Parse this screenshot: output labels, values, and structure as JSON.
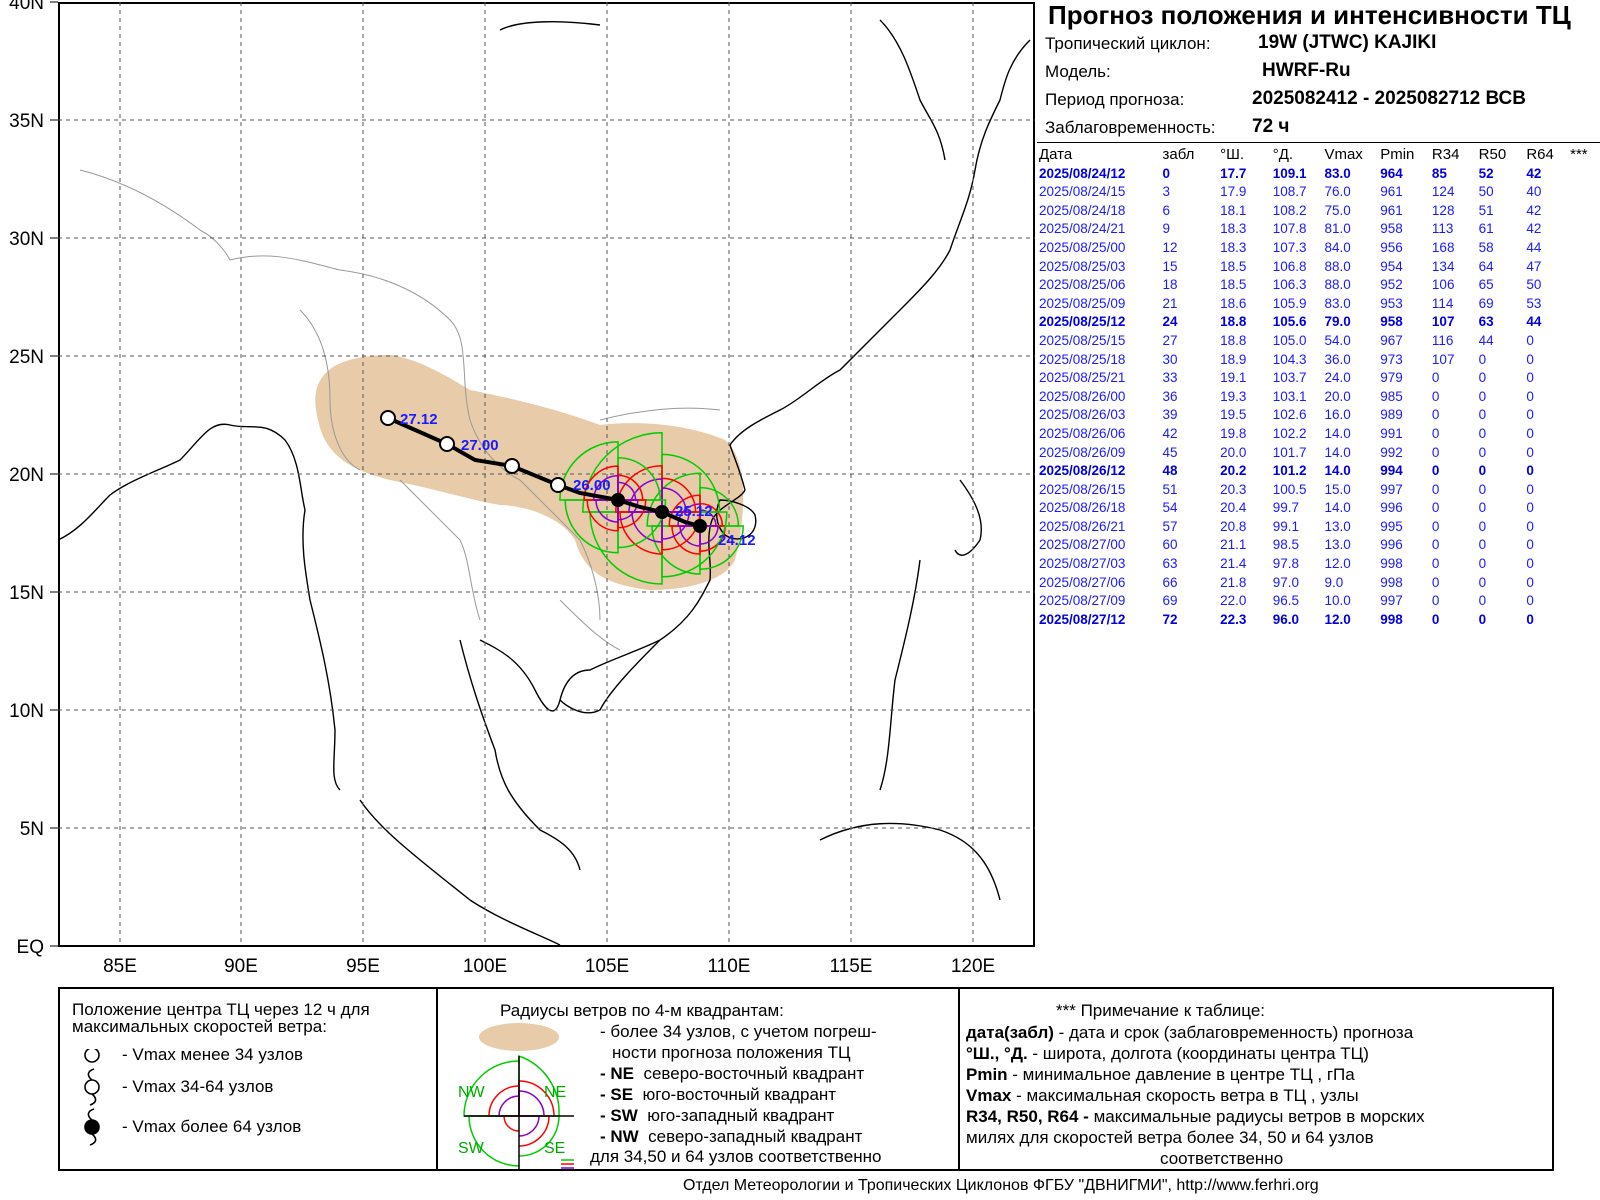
{
  "title": "Прогноз положения и интенсивности ТЦ",
  "info": {
    "cyclone_label": "Тропический циклон:",
    "cyclone_value": "19W (JTWC)  KAJIKI",
    "model_label": "Модель:",
    "model_value": "HWRF-Ru",
    "period_label": "Период прогноза:",
    "period_value": "2025082412 - 2025082712 ВСВ",
    "lead_label": "Заблаговременность:",
    "lead_value": "72 ч"
  },
  "table": {
    "headers": [
      "Дата",
      "забл",
      "°Ш.",
      "°Д.",
      "Vmax",
      "Pmin",
      "R34",
      "R50",
      "R64",
      "***"
    ],
    "rows": [
      {
        "bold": true,
        "cells": [
          "2025/08/24/12",
          "0",
          "17.7",
          "109.1",
          "83.0",
          "964",
          "85",
          "52",
          "42"
        ]
      },
      {
        "bold": false,
        "cells": [
          "2025/08/24/15",
          "3",
          "17.9",
          "108.7",
          "76.0",
          "961",
          "124",
          "50",
          "40"
        ]
      },
      {
        "bold": false,
        "cells": [
          "2025/08/24/18",
          "6",
          "18.1",
          "108.2",
          "75.0",
          "961",
          "128",
          "51",
          "42"
        ]
      },
      {
        "bold": false,
        "cells": [
          "2025/08/24/21",
          "9",
          "18.3",
          "107.8",
          "81.0",
          "958",
          "113",
          "61",
          "42"
        ]
      },
      {
        "bold": false,
        "cells": [
          "2025/08/25/00",
          "12",
          "18.3",
          "107.3",
          "84.0",
          "956",
          "168",
          "58",
          "44"
        ]
      },
      {
        "bold": false,
        "cells": [
          "2025/08/25/03",
          "15",
          "18.5",
          "106.8",
          "88.0",
          "954",
          "134",
          "64",
          "47"
        ]
      },
      {
        "bold": false,
        "cells": [
          "2025/08/25/06",
          "18",
          "18.5",
          "106.3",
          "88.0",
          "952",
          "106",
          "65",
          "50"
        ]
      },
      {
        "bold": false,
        "cells": [
          "2025/08/25/09",
          "21",
          "18.6",
          "105.9",
          "83.0",
          "953",
          "114",
          "69",
          "53"
        ]
      },
      {
        "bold": true,
        "cells": [
          "2025/08/25/12",
          "24",
          "18.8",
          "105.6",
          "79.0",
          "958",
          "107",
          "63",
          "44"
        ]
      },
      {
        "bold": false,
        "cells": [
          "2025/08/25/15",
          "27",
          "18.8",
          "105.0",
          "54.0",
          "967",
          "116",
          "44",
          "0"
        ]
      },
      {
        "bold": false,
        "cells": [
          "2025/08/25/18",
          "30",
          "18.9",
          "104.3",
          "36.0",
          "973",
          "107",
          "0",
          "0"
        ]
      },
      {
        "bold": false,
        "cells": [
          "2025/08/25/21",
          "33",
          "19.1",
          "103.7",
          "24.0",
          "979",
          "0",
          "0",
          "0"
        ]
      },
      {
        "bold": false,
        "cells": [
          "2025/08/26/00",
          "36",
          "19.3",
          "103.1",
          "20.0",
          "985",
          "0",
          "0",
          "0"
        ]
      },
      {
        "bold": false,
        "cells": [
          "2025/08/26/03",
          "39",
          "19.5",
          "102.6",
          "16.0",
          "989",
          "0",
          "0",
          "0"
        ]
      },
      {
        "bold": false,
        "cells": [
          "2025/08/26/06",
          "42",
          "19.8",
          "102.2",
          "14.0",
          "991",
          "0",
          "0",
          "0"
        ]
      },
      {
        "bold": false,
        "cells": [
          "2025/08/26/09",
          "45",
          "20.0",
          "101.7",
          "14.0",
          "992",
          "0",
          "0",
          "0"
        ]
      },
      {
        "bold": true,
        "cells": [
          "2025/08/26/12",
          "48",
          "20.2",
          "101.2",
          "14.0",
          "994",
          "0",
          "0",
          "0"
        ]
      },
      {
        "bold": false,
        "cells": [
          "2025/08/26/15",
          "51",
          "20.3",
          "100.5",
          "15.0",
          "997",
          "0",
          "0",
          "0"
        ]
      },
      {
        "bold": false,
        "cells": [
          "2025/08/26/18",
          "54",
          "20.4",
          "99.7",
          "14.0",
          "996",
          "0",
          "0",
          "0"
        ]
      },
      {
        "bold": false,
        "cells": [
          "2025/08/26/21",
          "57",
          "20.8",
          "99.1",
          "13.0",
          "995",
          "0",
          "0",
          "0"
        ]
      },
      {
        "bold": false,
        "cells": [
          "2025/08/27/00",
          "60",
          "21.1",
          "98.5",
          "13.0",
          "996",
          "0",
          "0",
          "0"
        ]
      },
      {
        "bold": false,
        "cells": [
          "2025/08/27/03",
          "63",
          "21.4",
          "97.8",
          "12.0",
          "998",
          "0",
          "0",
          "0"
        ]
      },
      {
        "bold": false,
        "cells": [
          "2025/08/27/06",
          "66",
          "21.8",
          "97.0",
          "9.0",
          "998",
          "0",
          "0",
          "0"
        ]
      },
      {
        "bold": false,
        "cells": [
          "2025/08/27/09",
          "69",
          "22.0",
          "96.5",
          "10.0",
          "997",
          "0",
          "0",
          "0"
        ]
      },
      {
        "bold": true,
        "cells": [
          "2025/08/27/12",
          "72",
          "22.3",
          "96.0",
          "12.0",
          "998",
          "0",
          "0",
          "0"
        ]
      }
    ]
  },
  "map": {
    "lat_labels": [
      "40N",
      "35N",
      "30N",
      "25N",
      "20N",
      "15N",
      "10N",
      "5N",
      "EQ"
    ],
    "lon_labels": [
      "85E",
      "90E",
      "95E",
      "100E",
      "105E",
      "110E",
      "115E",
      "120E"
    ],
    "track_labels": [
      "27.12",
      "27.00",
      "26.00",
      "25.12",
      "24.12"
    ],
    "colors": {
      "uncertainty": "#e8cba8",
      "r34": "#00cc00",
      "r50": "#ff0000",
      "r64": "#8800cc",
      "track": "#000000",
      "label": "#1a1aff"
    }
  },
  "legend": {
    "left_title": "Положение центра ТЦ через 12 ч для максимальных скоростей ветра:",
    "left_items": [
      "- Vmax   менее 34 узлов",
      "- Vmax   34-64 узлов",
      "- Vmax   более 64 узлов"
    ],
    "mid_title": "Радиусы ветров по 4-м квадрантам:",
    "mid_items": [
      "- более 34 узлов, с учетом погреш-",
      "ности прогноза положения ТЦ",
      "северо-восточный квадрант",
      "юго-восточный квадрант",
      "юго-западный квадрант",
      "северо-западный квадрант",
      "для 34,50 и 64 узлов соответственно"
    ],
    "quadrant_codes": [
      "- NE",
      "- SE",
      "- SW",
      "- NW"
    ],
    "quadrant_map_labels": [
      "NW",
      "NE",
      "SW",
      "SE"
    ],
    "right_title": "*** Примечание к таблице:",
    "right_items": [
      {
        "k": "дата(забл)",
        "v": " - дата и срок (заблаговременность) прогноза"
      },
      {
        "k": "°Ш., °Д.",
        "v": " - широта, долгота   (координаты центра ТЦ)"
      },
      {
        "k": "Pmin",
        "v": "  - минимальное давление в центре ТЦ , гПа"
      },
      {
        "k": "Vmax",
        "v": "   -  максимальная скорость ветра в ТЦ , узлы"
      },
      {
        "k": "R34, R50, R64 -",
        "v": "  максимальные радиусы ветров в морских"
      },
      {
        "k": "",
        "v": "милях для скоростей ветра более 34, 50 и 64 узлов"
      },
      {
        "k": "",
        "v": "соответственно"
      }
    ]
  },
  "footer": "Отдел Метеорологии и Тропических Циклонов ФГБУ \"ДВНИГМИ\",  http://www.ferhri.org"
}
